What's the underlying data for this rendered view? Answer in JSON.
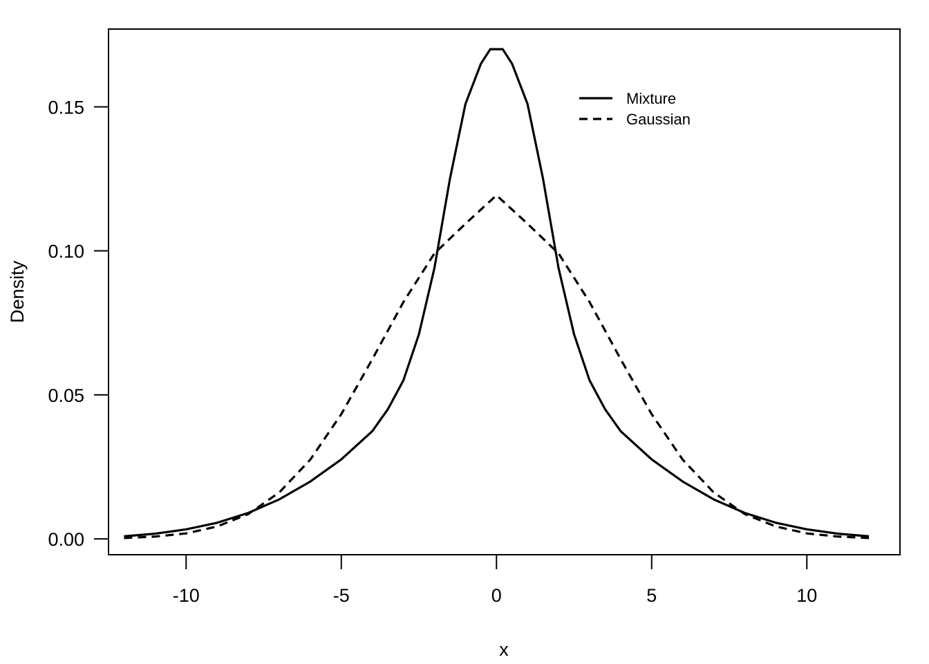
{
  "chart_data": {
    "type": "line",
    "title": "",
    "xlabel": "x",
    "ylabel": "Density",
    "xlim": [
      -12.5,
      13.0
    ],
    "ylim": [
      -0.0055,
      0.177
    ],
    "x_ticks": [
      -10,
      -5,
      0,
      5,
      10
    ],
    "x_tick_labels": [
      "-10",
      "-5",
      "0",
      "5",
      "10"
    ],
    "y_ticks": [
      0.0,
      0.05,
      0.1,
      0.15
    ],
    "y_tick_labels": [
      "0.00",
      "0.05",
      "0.10",
      "0.15"
    ],
    "grid": false,
    "legend_position": "top-right",
    "colors": {
      "line": "#000000",
      "frame": "#000000",
      "background": "#ffffff"
    },
    "series": [
      {
        "name": "Mixture",
        "style": "solid",
        "x": [
          -12,
          -11,
          -10,
          -9,
          -8,
          -7,
          -6,
          -5,
          -4,
          -3.5,
          -3,
          -2.5,
          -2,
          -1.5,
          -1,
          -0.5,
          -0.2,
          0,
          0.2,
          0.5,
          1,
          1.5,
          2,
          2.5,
          3,
          3.5,
          4,
          5,
          6,
          7,
          8,
          9,
          10,
          11,
          12
        ],
        "values": [
          0.0009,
          0.0018,
          0.0033,
          0.0056,
          0.009,
          0.0137,
          0.0199,
          0.0276,
          0.0374,
          0.045,
          0.055,
          0.071,
          0.094,
          0.125,
          0.151,
          0.165,
          0.17,
          0.17,
          0.17,
          0.165,
          0.151,
          0.125,
          0.094,
          0.071,
          0.055,
          0.045,
          0.0374,
          0.0276,
          0.0199,
          0.0137,
          0.009,
          0.0056,
          0.0033,
          0.0018,
          0.0009
        ]
      },
      {
        "name": "Gaussian",
        "style": "dashed",
        "x": [
          -12,
          -11,
          -10,
          -9,
          -8,
          -7,
          -6,
          -5,
          -4,
          -3,
          -2,
          -1,
          0,
          1,
          2,
          3,
          4,
          5,
          6,
          7,
          8,
          9,
          10,
          11,
          12
        ],
        "values": [
          0.0003,
          0.0008,
          0.0019,
          0.0043,
          0.0086,
          0.0161,
          0.0275,
          0.0433,
          0.0624,
          0.0822,
          0.0991,
          0.1094,
          0.1193,
          0.1094,
          0.0991,
          0.0822,
          0.0624,
          0.0433,
          0.0275,
          0.0161,
          0.0086,
          0.0043,
          0.0019,
          0.0008,
          0.0003
        ]
      }
    ]
  }
}
